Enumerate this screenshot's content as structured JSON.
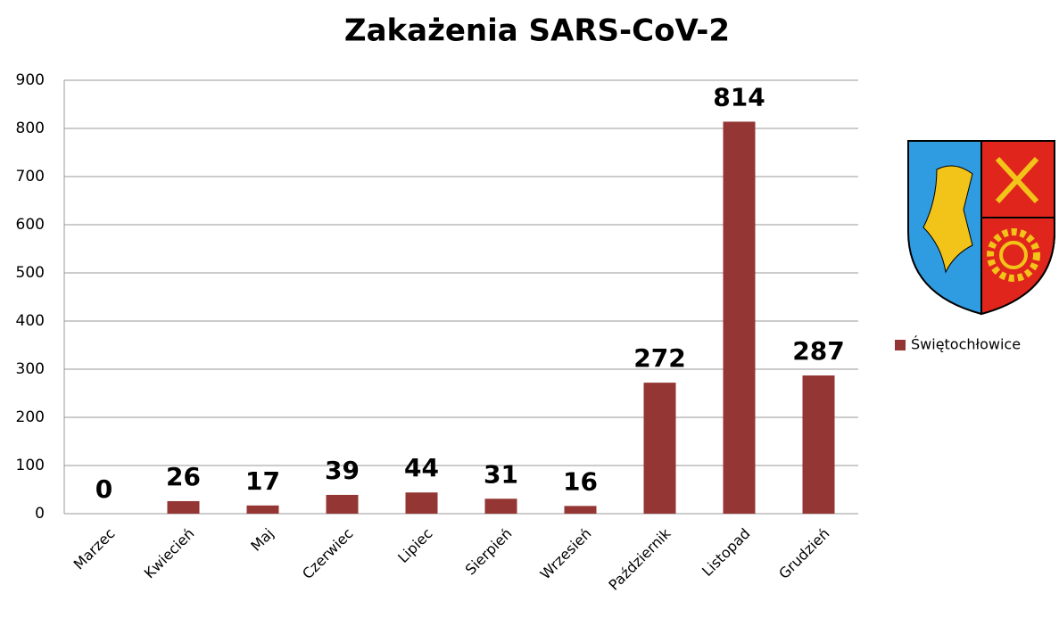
{
  "chart_data": {
    "type": "bar",
    "title": "Zakażenia SARS-CoV-2",
    "categories": [
      "Marzec",
      "Kwiecień",
      "Maj",
      "Czerwiec",
      "Lipiec",
      "Sierpień",
      "Wrzesień",
      "Październik",
      "Listopad",
      "Grudzień"
    ],
    "series": [
      {
        "name": "Świętochłowice",
        "color": "#943634",
        "values": [
          0,
          26,
          17,
          39,
          44,
          31,
          16,
          272,
          814,
          287
        ]
      }
    ],
    "ylim": [
      0,
      900
    ],
    "yticks": [
      0,
      100,
      200,
      300,
      400,
      500,
      600,
      700,
      800,
      900
    ],
    "grid": true,
    "legend": "right"
  }
}
